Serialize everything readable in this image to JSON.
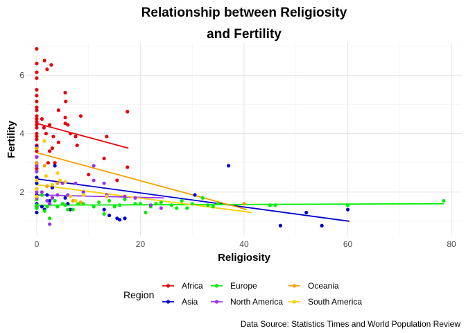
{
  "chart_data": {
    "type": "scatter",
    "title": [
      "Relationship between Religiosity",
      "and Fertility"
    ],
    "xlabel": "Religiosity",
    "ylabel": "Fertility",
    "xlim": [
      -2,
      82
    ],
    "ylim": [
      0.5,
      7.1
    ],
    "x_ticks": [
      0,
      20,
      40,
      60,
      80
    ],
    "y_ticks": [
      2,
      4,
      6
    ],
    "grid": true,
    "legend": {
      "title": "Region",
      "position": "bottom"
    },
    "caption": "Data Source: Statistics Times and World Population Review",
    "series": [
      {
        "name": "Africa",
        "color": "#e8000b",
        "points": [
          [
            0,
            6.9
          ],
          [
            0,
            6.4
          ],
          [
            0,
            6.1
          ],
          [
            0,
            5.9
          ],
          [
            0,
            5.5
          ],
          [
            0,
            5.3
          ],
          [
            0,
            5.1
          ],
          [
            0,
            4.9
          ],
          [
            0,
            4.8
          ],
          [
            0,
            4.6
          ],
          [
            0,
            4.5
          ],
          [
            0,
            4.4
          ],
          [
            0,
            4.3
          ],
          [
            0,
            4.2
          ],
          [
            0,
            4.0
          ],
          [
            0,
            3.9
          ],
          [
            0,
            3.8
          ],
          [
            0,
            3.6
          ],
          [
            0,
            3.4
          ],
          [
            0,
            3.2
          ],
          [
            0,
            3.0
          ],
          [
            0,
            2.8
          ],
          [
            0,
            1.9
          ],
          [
            0,
            1.5
          ],
          [
            1.5,
            6.5
          ],
          [
            2.0,
            6.2
          ],
          [
            2.8,
            6.35
          ],
          [
            1,
            4.5
          ],
          [
            1.4,
            4.2
          ],
          [
            1.8,
            4.0
          ],
          [
            2.5,
            4.3
          ],
          [
            3.2,
            3.9
          ],
          [
            3.0,
            3.5
          ],
          [
            2.5,
            3.4
          ],
          [
            4.2,
            3.7
          ],
          [
            4.2,
            4.8
          ],
          [
            5.5,
            5.4
          ],
          [
            5.6,
            5.1
          ],
          [
            5.5,
            4.55
          ],
          [
            5.5,
            4.35
          ],
          [
            6.0,
            4.3
          ],
          [
            6.5,
            4.0
          ],
          [
            7.5,
            3.9
          ],
          [
            7.8,
            3.6
          ],
          [
            8.5,
            4.6
          ],
          [
            10.0,
            2.6
          ],
          [
            13.5,
            3.9
          ],
          [
            13.0,
            3.15
          ],
          [
            17.5,
            4.75
          ],
          [
            17.5,
            2.85
          ],
          [
            15.5,
            2.4
          ],
          [
            2.2,
            3.0
          ],
          [
            3.5,
            3.0
          ]
        ]
      },
      {
        "name": "Asia",
        "color": "#0000cc",
        "points": [
          [
            0,
            3.55
          ],
          [
            0,
            2.9
          ],
          [
            0,
            2.5
          ],
          [
            0,
            2.3
          ],
          [
            0,
            2.1
          ],
          [
            0,
            1.9
          ],
          [
            0,
            1.75
          ],
          [
            0,
            1.6
          ],
          [
            0,
            1.5
          ],
          [
            0,
            1.45
          ],
          [
            0,
            1.3
          ],
          [
            1,
            1.5
          ],
          [
            1.5,
            1.4
          ],
          [
            2,
            1.9
          ],
          [
            2.5,
            1.7
          ],
          [
            3.5,
            2.9
          ],
          [
            3.0,
            2.15
          ],
          [
            5.5,
            1.8
          ],
          [
            6.0,
            1.6
          ],
          [
            6.5,
            1.4
          ],
          [
            13.0,
            1.4
          ],
          [
            14.0,
            1.2
          ],
          [
            15.5,
            1.1
          ],
          [
            16.0,
            1.05
          ],
          [
            17.0,
            1.1
          ],
          [
            30.5,
            1.9
          ],
          [
            37,
            2.9
          ],
          [
            47,
            0.85
          ],
          [
            52,
            1.3
          ],
          [
            55,
            0.85
          ],
          [
            60,
            1.4
          ]
        ]
      },
      {
        "name": "Europe",
        "color": "#00ee00",
        "points": [
          [
            0,
            1.45
          ],
          [
            0,
            1.55
          ],
          [
            0,
            1.75
          ],
          [
            1,
            1.9
          ],
          [
            1.5,
            1.35
          ],
          [
            2.0,
            1.5
          ],
          [
            2.5,
            1.1
          ],
          [
            3,
            1.8
          ],
          [
            3.5,
            1.7
          ],
          [
            4,
            1.5
          ],
          [
            5,
            1.6
          ],
          [
            5.5,
            1.55
          ],
          [
            6,
            1.4
          ],
          [
            7,
            1.4
          ],
          [
            8,
            1.6
          ],
          [
            9,
            1.6
          ],
          [
            11,
            1.5
          ],
          [
            12,
            1.65
          ],
          [
            13,
            1.25
          ],
          [
            14,
            1.7
          ],
          [
            15,
            1.5
          ],
          [
            16,
            1.55
          ],
          [
            17,
            1.75
          ],
          [
            19,
            1.6
          ],
          [
            20,
            1.6
          ],
          [
            21,
            1.3
          ],
          [
            22,
            1.5
          ],
          [
            23,
            1.6
          ],
          [
            24,
            1.65
          ],
          [
            26,
            1.55
          ],
          [
            27,
            1.45
          ],
          [
            28,
            1.7
          ],
          [
            29,
            1.45
          ],
          [
            30,
            1.6
          ],
          [
            32,
            1.8
          ],
          [
            33,
            1.55
          ],
          [
            34,
            1.5
          ],
          [
            35,
            1.6
          ],
          [
            40,
            1.6
          ],
          [
            45,
            1.55
          ],
          [
            46,
            1.55
          ],
          [
            60,
            1.55
          ],
          [
            78.5,
            1.7
          ]
        ]
      },
      {
        "name": "North America",
        "color": "#9a32f0",
        "points": [
          [
            0,
            3.2
          ],
          [
            0,
            2.9
          ],
          [
            0,
            2.7
          ],
          [
            0,
            2.4
          ],
          [
            0,
            2.1
          ],
          [
            0,
            2.0
          ],
          [
            0,
            1.8
          ],
          [
            1.0,
            2.0
          ],
          [
            2.0,
            1.7
          ],
          [
            2.5,
            1.6
          ],
          [
            2.5,
            0.9
          ],
          [
            3.0,
            1.8
          ],
          [
            4.0,
            1.9
          ],
          [
            5.0,
            2.3
          ],
          [
            6.0,
            1.9
          ],
          [
            7.5,
            2.3
          ],
          [
            9.0,
            2.0
          ],
          [
            11.0,
            2.9
          ],
          [
            11.0,
            2.4
          ],
          [
            13.0,
            2.3
          ],
          [
            13.5,
            1.9
          ],
          [
            17.0,
            1.85
          ],
          [
            19.0,
            1.8
          ],
          [
            22.0,
            1.55
          ],
          [
            24.0,
            1.45
          ]
        ]
      },
      {
        "name": "Oceania",
        "color": "#f5a000",
        "points": [
          [
            0,
            3.5
          ],
          [
            0,
            3.0
          ],
          [
            1.5,
            2.9
          ],
          [
            2.0,
            2.2
          ],
          [
            4.0,
            2.3
          ],
          [
            7.0,
            1.7
          ],
          [
            8.5,
            1.65
          ],
          [
            40.0,
            1.6
          ]
        ]
      },
      {
        "name": "South America",
        "color": "#f5d000",
        "points": [
          [
            0,
            2.4
          ],
          [
            0,
            2.1
          ],
          [
            0,
            1.85
          ],
          [
            1.5,
            3.75
          ],
          [
            1.8,
            2.55
          ],
          [
            3.0,
            2.25
          ],
          [
            4.0,
            2.65
          ],
          [
            4.5,
            2.4
          ],
          [
            5.5,
            2.35
          ],
          [
            6.5,
            1.85
          ],
          [
            7.5,
            1.7
          ],
          [
            9.0,
            1.9
          ],
          [
            13.5,
            1.85
          ]
        ]
      }
    ],
    "trend_lines": [
      {
        "name": "Africa",
        "color": "#e8000b",
        "x": [
          0,
          17.7
        ],
        "y": [
          4.35,
          3.5
        ]
      },
      {
        "name": "Asia",
        "color": "#0000cc",
        "x": [
          0,
          60.3
        ],
        "y": [
          2.45,
          1.0
        ]
      },
      {
        "name": "Europe",
        "color": "#00ee00",
        "x": [
          0,
          78.5
        ],
        "y": [
          1.55,
          1.6
        ]
      },
      {
        "name": "North America",
        "color": "#9a32f0",
        "x": [
          0,
          24.5
        ],
        "y": [
          1.9,
          1.8
        ]
      },
      {
        "name": "Oceania",
        "color": "#f5a000",
        "x": [
          0,
          40.5
        ],
        "y": [
          3.35,
          1.4
        ]
      },
      {
        "name": "South America",
        "color": "#f5d000",
        "x": [
          0,
          41.5
        ],
        "y": [
          2.25,
          1.3
        ]
      }
    ]
  }
}
